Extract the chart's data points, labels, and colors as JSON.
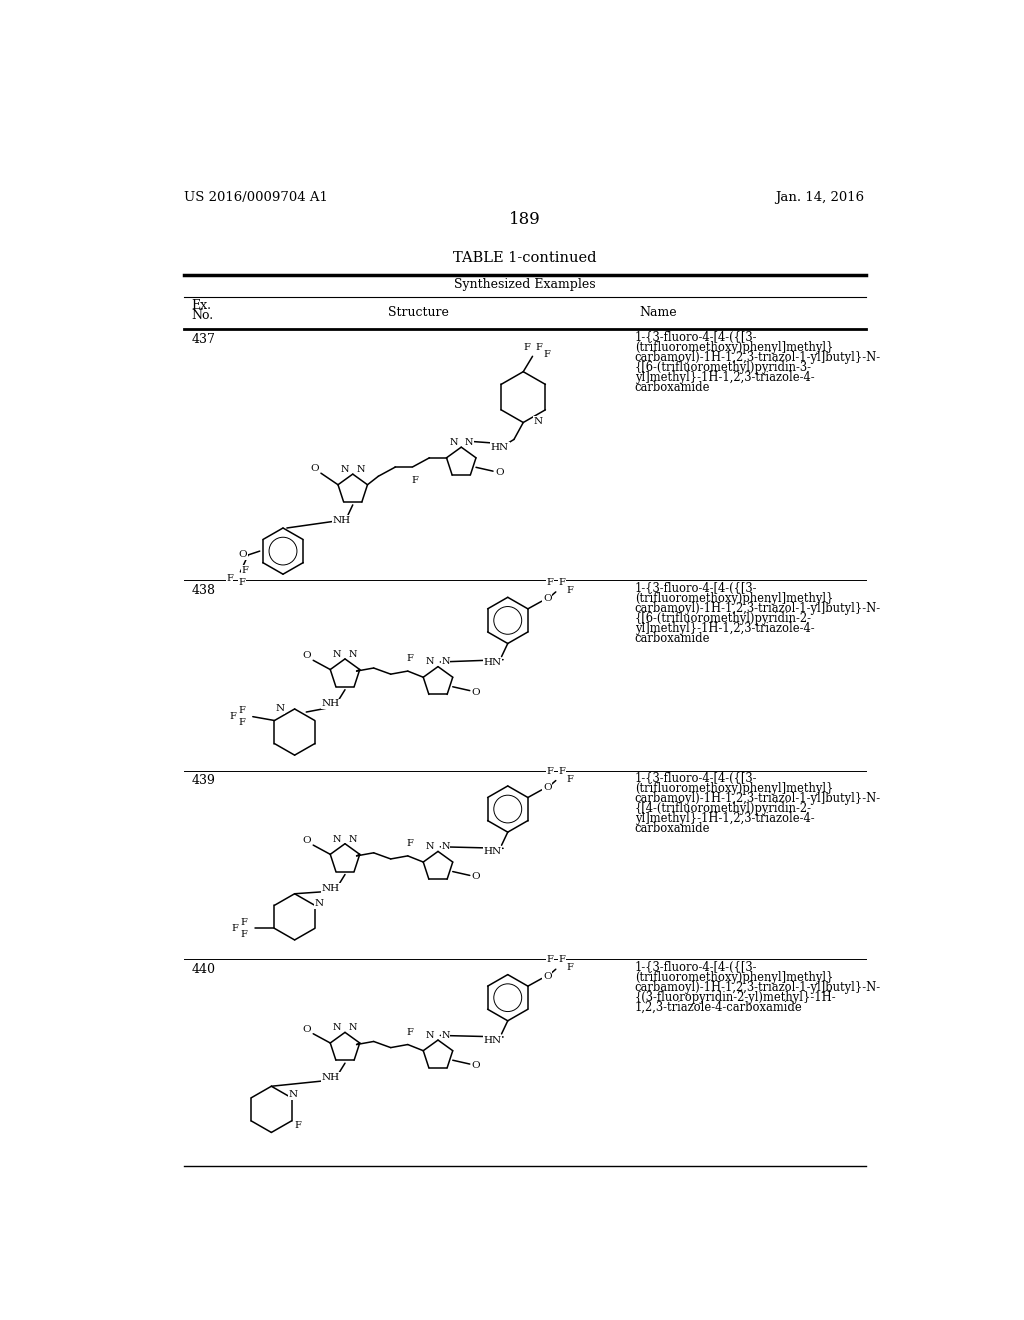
{
  "page_number": "189",
  "patent_number": "US 2016/0009704 A1",
  "patent_date": "Jan. 14, 2016",
  "table_title": "TABLE 1-continued",
  "table_subtitle": "Synthesized Examples",
  "background_color": "#ffffff",
  "text_color": "#000000",
  "entries": [
    {
      "ex_no": "437",
      "name": "1-{3-fluoro-4-[4-({[3-\n(trifluoromethoxy)phenyl]methyl}\ncarbamoyl)-1H-1,2,3-triazol-1-yl]butyl}-N-\n{[6-(trifluoromethyl)pyridin-3-\nyl]methyl}-1H-1,2,3-triazole-4-\ncarboxamide"
    },
    {
      "ex_no": "438",
      "name": "1-{3-fluoro-4-[4-({[3-\n(trifluoromethoxy)phenyl]methyl}\ncarbamoyl)-1H-1,2,3-triazol-1-yl]butyl}-N-\n{[6-(trifluoromethyl)pyridin-2-\nyl]methyl}-1H-1,2,3-triazole-4-\ncarboxamide"
    },
    {
      "ex_no": "439",
      "name": "1-{3-fluoro-4-[4-({[3-\n(trifluoromethoxy)phenyl]methyl}\ncarbamoyl)-1H-1,2,3-triazol-1-yl]butyl}-N-\n{[4-(trifluoromethyl)pyridin-2-\nyl]methyl}-1H-1,2,3-triazole-4-\ncarboxamide"
    },
    {
      "ex_no": "440",
      "name": "1-{3-fluoro-4-[4-({[3-\n(trifluoromethoxy)phenyl]methyl}\ncarbamoyl)-1H-1,2,3-triazol-1-yl]butyl}-N-\n{(3-fluoropyridin-2-yl)methyl}-1H-\n1,2,3-triazole-4-carboxamide"
    }
  ]
}
